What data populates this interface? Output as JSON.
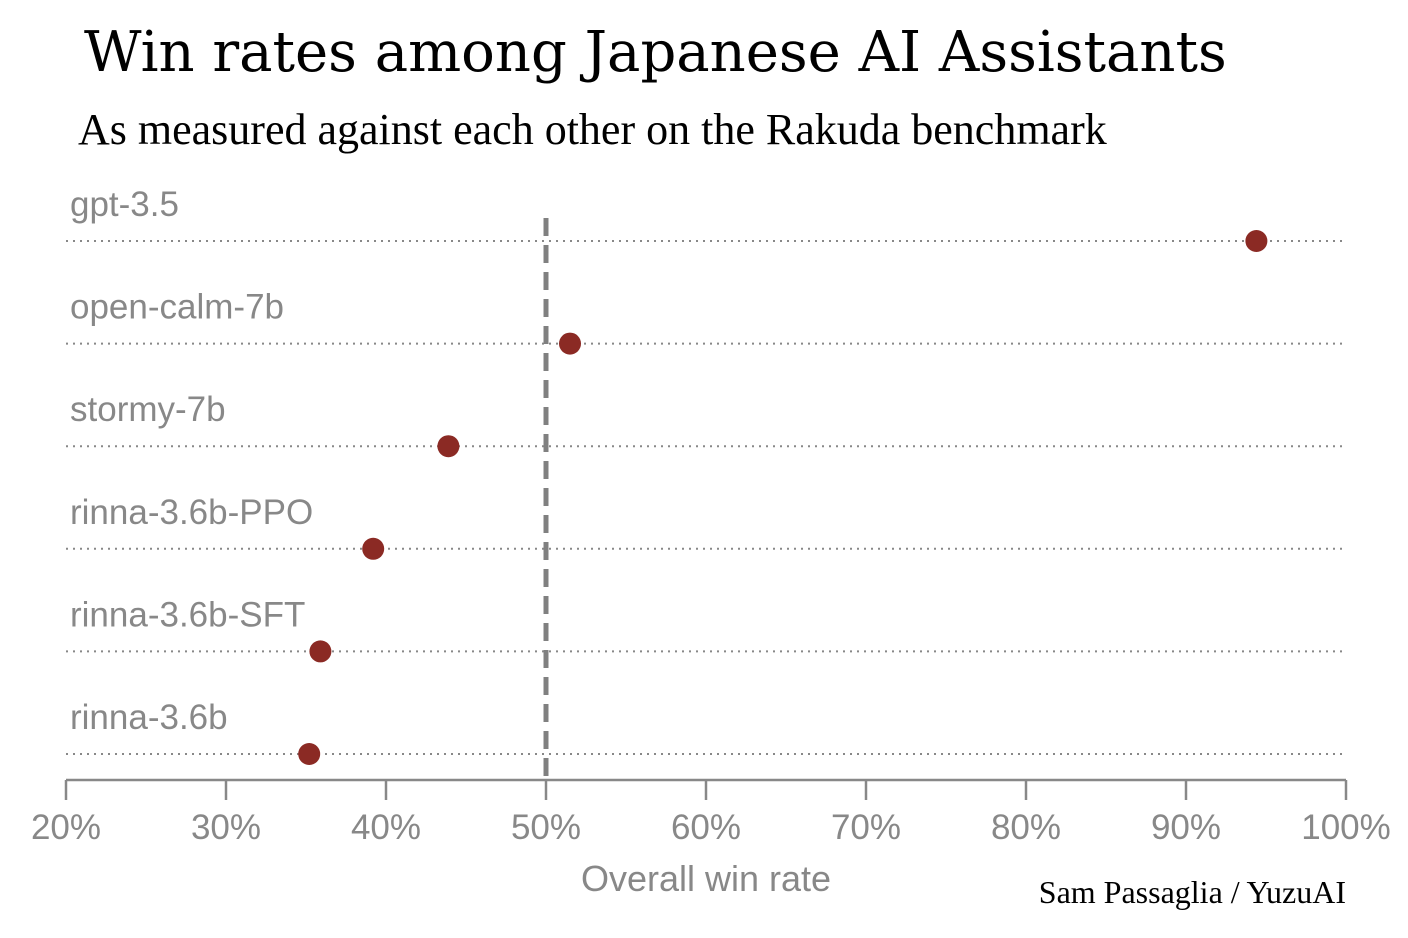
{
  "title": "Win rates among Japanese AI Assistants",
  "subtitle": "As measured against each other on the Rakuda benchmark",
  "credit": "Sam Passaglia / YuzuAI",
  "chart_data": {
    "type": "scatter",
    "categories": [
      "gpt-3.5",
      "open-calm-7b",
      "stormy-7b",
      "rinna-3.6b-PPO",
      "rinna-3.6b-SFT",
      "rinna-3.6b"
    ],
    "values": [
      94.4,
      51.5,
      43.9,
      39.2,
      35.9,
      35.2
    ],
    "xlabel": "Overall win rate",
    "xlim": [
      20,
      100
    ],
    "xticks": [
      20,
      30,
      40,
      50,
      60,
      70,
      80,
      90,
      100
    ],
    "xtick_labels": [
      "20%",
      "30%",
      "40%",
      "50%",
      "60%",
      "70%",
      "80%",
      "90%",
      "100%"
    ],
    "reference_line": 50,
    "grid": "dotted horizontal per category",
    "colors": {
      "point": "#8b2a24",
      "text": "#888888",
      "axis": "#888888",
      "reference": "#808080"
    }
  }
}
